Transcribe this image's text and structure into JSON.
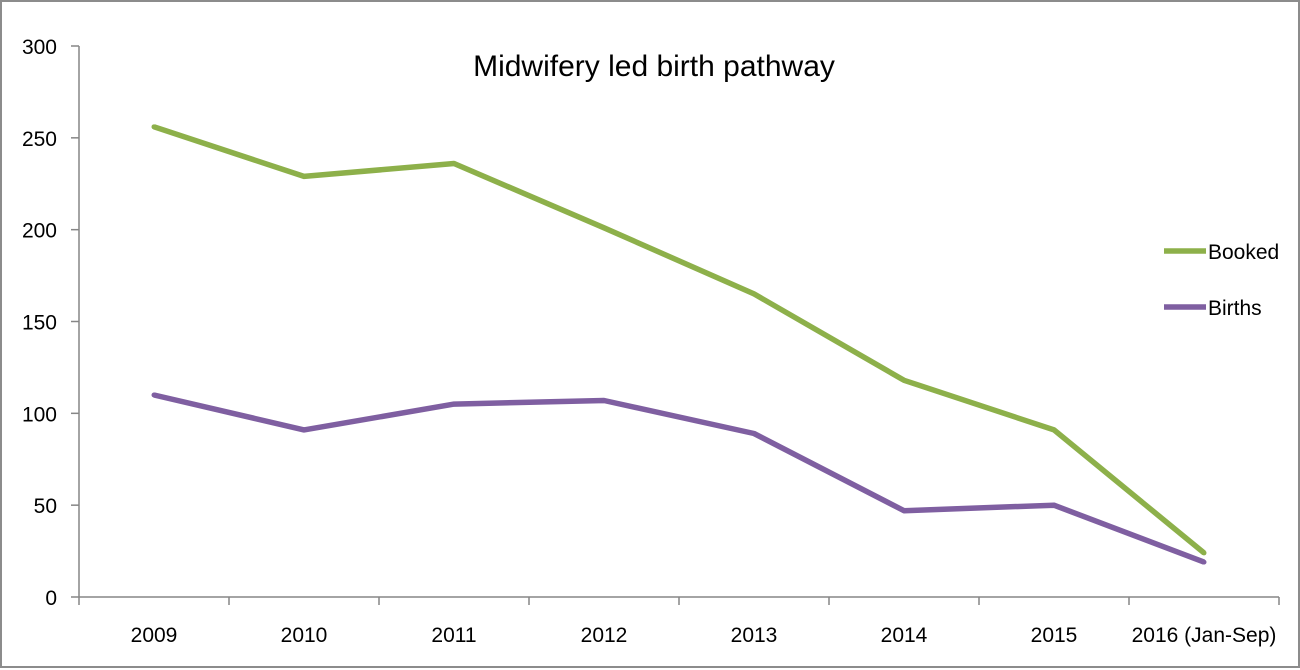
{
  "chart_data": {
    "type": "line",
    "title": "Midwifery led birth pathway",
    "xlabel": "",
    "ylabel": "",
    "categories": [
      "2009",
      "2010",
      "2011",
      "2012",
      "2013",
      "2014",
      "2015",
      "2016 (Jan-Sep)"
    ],
    "ylim": [
      0,
      300
    ],
    "yticks": [
      "0",
      "50",
      "100",
      "150",
      "200",
      "250",
      "300"
    ],
    "grid": false,
    "legend_position": "right",
    "series": [
      {
        "name": "Booked",
        "color": "#8db04a",
        "values": [
          256,
          229,
          236,
          201,
          165,
          118,
          91,
          24
        ]
      },
      {
        "name": "Births",
        "color": "#7f5fa1",
        "values": [
          110,
          91,
          105,
          107,
          89,
          47,
          50,
          19
        ]
      }
    ]
  }
}
